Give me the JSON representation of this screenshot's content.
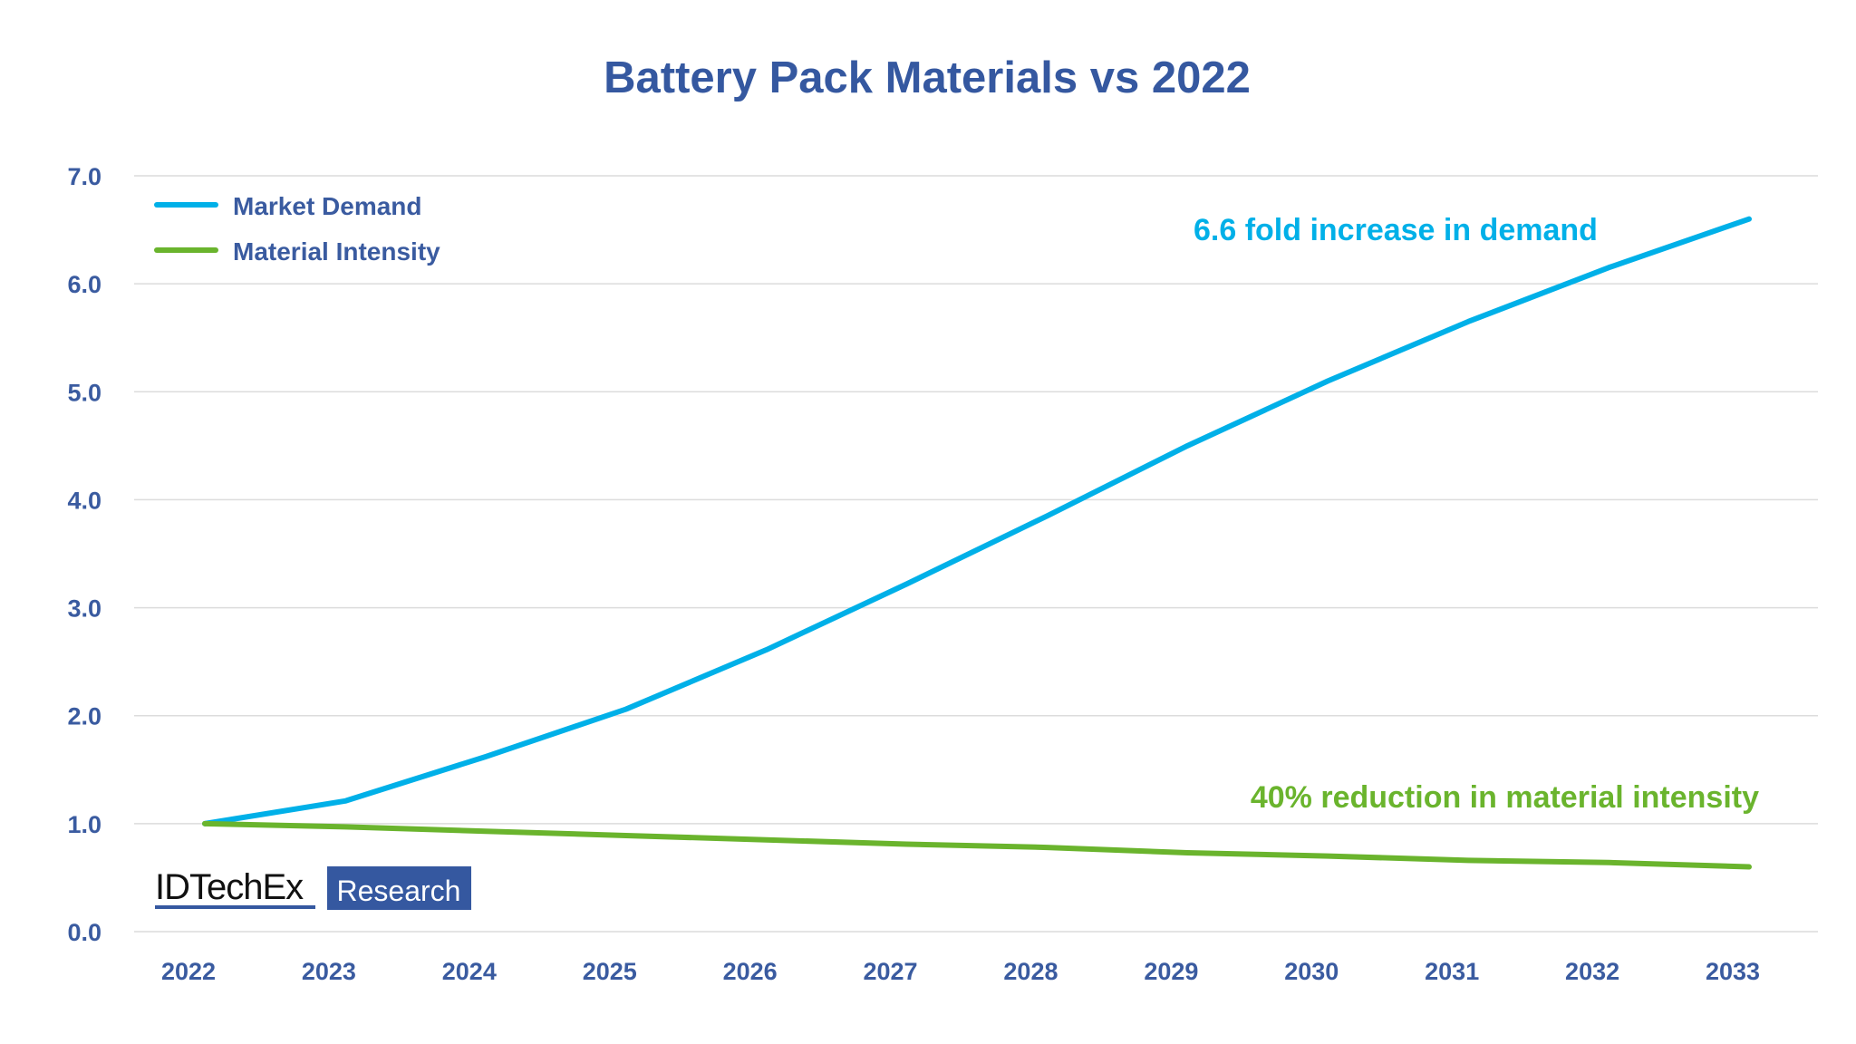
{
  "chart_data": {
    "type": "line",
    "title": "Battery Pack Materials vs 2022",
    "xlabel": "",
    "ylabel": "",
    "x": [
      "2022",
      "2023",
      "2024",
      "2025",
      "2026",
      "2027",
      "2028",
      "2029",
      "2030",
      "2031",
      "2032",
      "2033"
    ],
    "ylim": [
      0,
      7
    ],
    "yticks": [
      "0.0",
      "1.0",
      "2.0",
      "3.0",
      "4.0",
      "5.0",
      "6.0",
      "7.0"
    ],
    "grid": true,
    "legend_position": "top-left",
    "series": [
      {
        "name": "Market Demand",
        "color": "#00b0e8",
        "values": [
          1.0,
          1.21,
          1.62,
          2.06,
          2.61,
          3.22,
          3.85,
          4.5,
          5.1,
          5.65,
          6.15,
          6.6
        ]
      },
      {
        "name": "Material Intensity",
        "color": "#6ab42d",
        "values": [
          1.0,
          0.97,
          0.93,
          0.89,
          0.85,
          0.81,
          0.78,
          0.73,
          0.7,
          0.66,
          0.64,
          0.6
        ]
      }
    ],
    "annotations": [
      {
        "text": "6.6 fold increase in demand",
        "color": "#00b0e8"
      },
      {
        "text": "40% reduction in material intensity",
        "color": "#6ab42d"
      }
    ]
  },
  "logo": {
    "brand": "IDTechEx",
    "tag": "Research"
  }
}
